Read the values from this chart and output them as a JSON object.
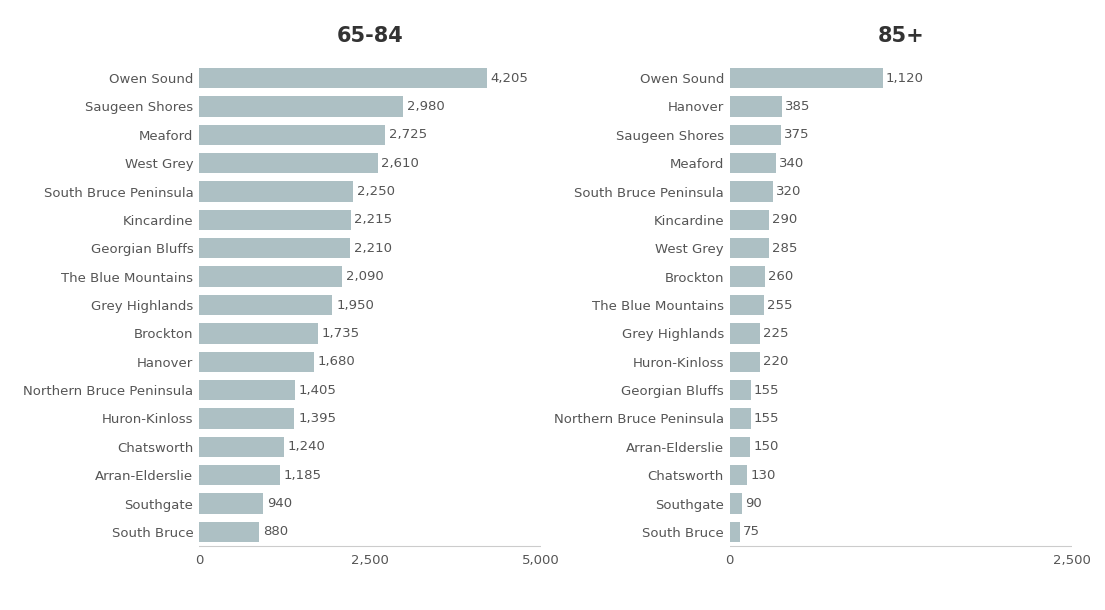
{
  "left_title": "65-84",
  "right_title": "85+",
  "left_categories": [
    "Owen Sound",
    "Saugeen Shores",
    "Meaford",
    "West Grey",
    "South Bruce Peninsula",
    "Kincardine",
    "Georgian Bluffs",
    "The Blue Mountains",
    "Grey Highlands",
    "Brockton",
    "Hanover",
    "Northern Bruce Peninsula",
    "Huron-Kinloss",
    "Chatsworth",
    "Arran-Elderslie",
    "Southgate",
    "South Bruce"
  ],
  "left_values": [
    4205,
    2980,
    2725,
    2610,
    2250,
    2215,
    2210,
    2090,
    1950,
    1735,
    1680,
    1405,
    1395,
    1240,
    1185,
    940,
    880
  ],
  "right_categories": [
    "Owen Sound",
    "Hanover",
    "Saugeen Shores",
    "Meaford",
    "South Bruce Peninsula",
    "Kincardine",
    "West Grey",
    "Brockton",
    "The Blue Mountains",
    "Grey Highlands",
    "Huron-Kinloss",
    "Georgian Bluffs",
    "Northern Bruce Peninsula",
    "Arran-Elderslie",
    "Chatsworth",
    "Southgate",
    "South Bruce"
  ],
  "right_values": [
    1120,
    385,
    375,
    340,
    320,
    290,
    285,
    260,
    255,
    225,
    220,
    155,
    155,
    150,
    130,
    90,
    75
  ],
  "bar_color": "#adc0c4",
  "background_color": "#ffffff",
  "left_xlim": [
    0,
    5000
  ],
  "right_xlim": [
    0,
    2500
  ],
  "left_xticks": [
    0,
    2500,
    5000
  ],
  "right_xticks": [
    0,
    2500
  ],
  "title_fontsize": 15,
  "label_fontsize": 9.5,
  "value_fontsize": 9.5,
  "tick_fontsize": 9.5
}
